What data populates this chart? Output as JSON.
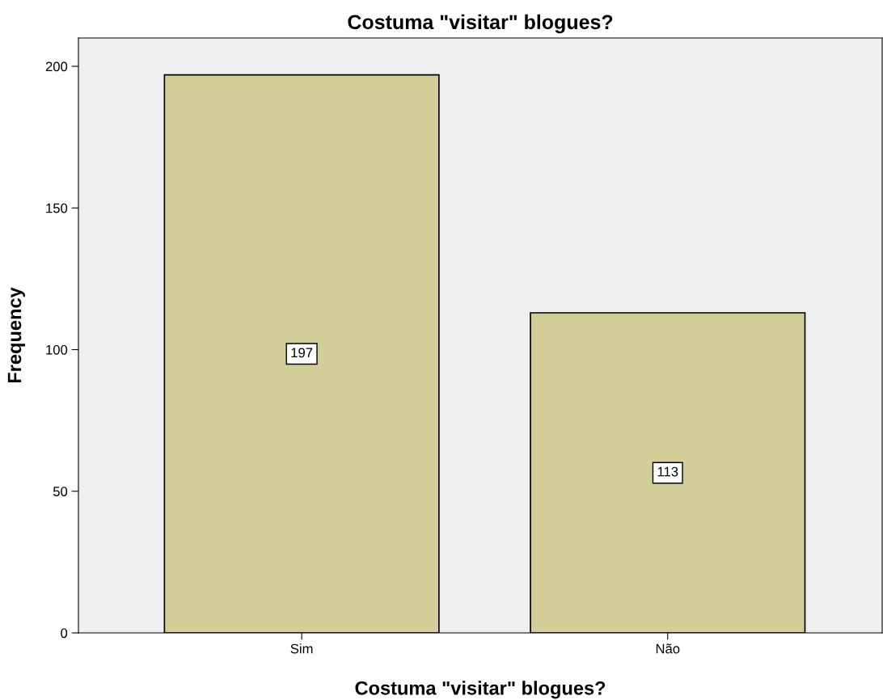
{
  "chart_data": {
    "type": "bar",
    "title": "Costuma \"visitar\" blogues?",
    "xlabel": "Costuma \"visitar\" blogues?",
    "ylabel": "Frequency",
    "categories": [
      "Sim",
      "Não"
    ],
    "values": [
      197,
      113
    ],
    "color": "#d3ce97",
    "ylim": [
      0,
      210
    ],
    "yticks": [
      0,
      50,
      100,
      150,
      200
    ],
    "grid": false,
    "data_labels": true
  }
}
